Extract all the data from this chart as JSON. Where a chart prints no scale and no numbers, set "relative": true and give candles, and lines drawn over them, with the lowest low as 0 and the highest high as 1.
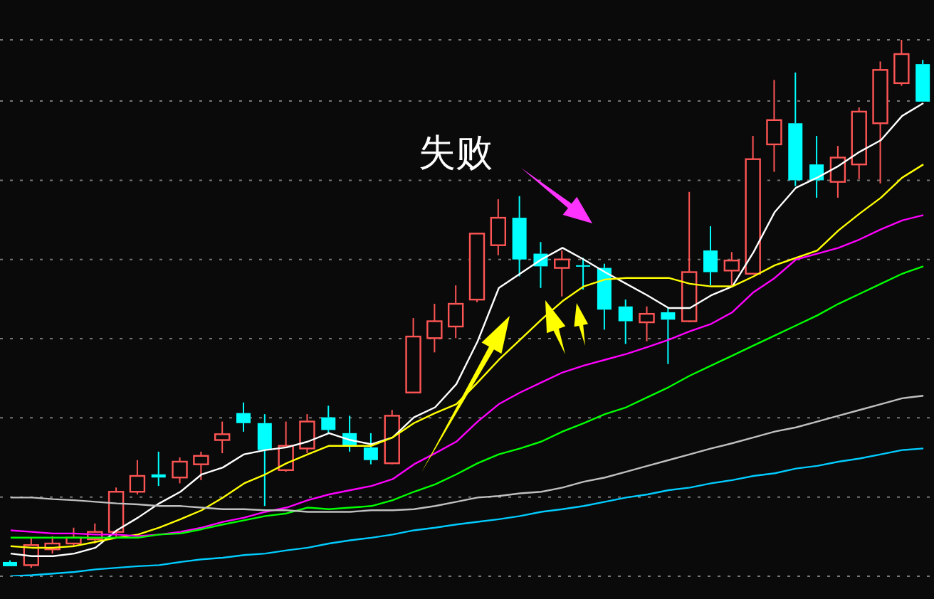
{
  "chart_data": {
    "type": "candlestick",
    "relative": true,
    "grid": true,
    "annotations": [
      "失败"
    ],
    "categories": [
      null,
      null,
      null,
      null,
      null,
      null,
      null,
      null,
      null,
      null,
      null,
      null,
      null,
      null,
      null,
      null,
      null,
      null,
      null,
      null,
      null,
      null,
      null,
      null,
      null,
      null,
      null,
      null,
      null,
      null,
      null,
      null,
      null,
      null,
      null,
      null,
      null,
      null,
      null,
      null,
      null,
      null,
      null,
      null
    ],
    "ohlc": [
      [
        0.011,
        0.014,
        0.003,
        0.003
      ],
      [
        0.005,
        0.057,
        0,
        0.043
      ],
      [
        0.035,
        0.06,
        0.027,
        0.046
      ],
      [
        0.046,
        0.076,
        0.041,
        0.057
      ],
      [
        0.054,
        0.084,
        0.046,
        0.068
      ],
      [
        0.068,
        0.152,
        0.057,
        0.144
      ],
      [
        0.144,
        0.204,
        0.139,
        0.174
      ],
      [
        0.177,
        0.22,
        0.155,
        0.171
      ],
      [
        0.171,
        0.209,
        0.16,
        0.201
      ],
      [
        0.196,
        0.22,
        0.166,
        0.212
      ],
      [
        0.242,
        0.277,
        0.217,
        0.253
      ],
      [
        0.293,
        0.313,
        0.258,
        0.274
      ],
      [
        0.274,
        0.291,
        0.117,
        0.223
      ],
      [
        0.185,
        0.277,
        0.182,
        0.231
      ],
      [
        0.226,
        0.291,
        0.217,
        0.277
      ],
      [
        0.285,
        0.307,
        0.255,
        0.261
      ],
      [
        0.255,
        0.288,
        0.22,
        0.231
      ],
      [
        0.228,
        0.255,
        0.196,
        0.204
      ],
      [
        0.198,
        0.299,
        0.196,
        0.288
      ],
      [
        0.332,
        0.473,
        0.332,
        0.438
      ],
      [
        0.435,
        0.5,
        0.408,
        0.467
      ],
      [
        0.457,
        0.535,
        0.435,
        0.5
      ],
      [
        0.508,
        0.633,
        0.503,
        0.633
      ],
      [
        0.611,
        0.698,
        0.592,
        0.663
      ],
      [
        0.663,
        0.704,
        0.552,
        0.584
      ],
      [
        0.595,
        0.617,
        0.53,
        0.571
      ],
      [
        0.568,
        0.601,
        0.514,
        0.584
      ],
      [
        0.573,
        0.587,
        0.527,
        0.573
      ],
      [
        0.568,
        0.576,
        0.451,
        0.489
      ],
      [
        0.495,
        0.508,
        0.424,
        0.467
      ],
      [
        0.465,
        0.495,
        0.429,
        0.481
      ],
      [
        0.484,
        0.492,
        0.386,
        0.47
      ],
      [
        0.467,
        0.712,
        0.465,
        0.56
      ],
      [
        0.601,
        0.647,
        0.535,
        0.56
      ],
      [
        0.563,
        0.598,
        0.535,
        0.582
      ],
      [
        0.557,
        0.818,
        0.557,
        0.774
      ],
      [
        0.802,
        0.924,
        0.75,
        0.848
      ],
      [
        0.842,
        0.938,
        0.723,
        0.734
      ],
      [
        0.764,
        0.818,
        0.701,
        0.734
      ],
      [
        0.731,
        0.799,
        0.701,
        0.777
      ],
      [
        0.764,
        0.872,
        0.736,
        0.864
      ],
      [
        0.842,
        0.959,
        0.728,
        0.943
      ],
      [
        0.918,
        1,
        0.913,
        0.973
      ],
      [
        0.954,
        0.962,
        0.883,
        0.883
      ]
    ],
    "colors": [
      "#00ffff",
      "#ff5555",
      "#ff5555",
      "#ff5555",
      "#ff5555",
      "#ff5555",
      "#ff5555",
      "#00ffff",
      "#ff5555",
      "#ff5555",
      "#ff5555",
      "#00ffff",
      "#00ffff",
      "#ff5555",
      "#ff5555",
      "#00ffff",
      "#00ffff",
      "#00ffff",
      "#ff5555",
      "#ff5555",
      "#ff5555",
      "#ff5555",
      "#ff5555",
      "#ff5555",
      "#00ffff",
      "#00ffff",
      "#ff5555",
      "#00ffff",
      "#00ffff",
      "#00ffff",
      "#ff5555",
      "#00ffff",
      "#ff5555",
      "#00ffff",
      "#ff5555",
      "#ff5555",
      "#ff5555",
      "#00ffff",
      "#00ffff",
      "#ff5555",
      "#ff5555",
      "#ff5555",
      "#ff5555",
      "#00ffff"
    ],
    "series": [
      {
        "type": "line",
        "color": "#ffffff",
        "values": [
          0.027,
          0.022,
          0.022,
          0.027,
          0.038,
          0.071,
          0.095,
          0.122,
          0.144,
          0.177,
          0.19,
          0.215,
          0.223,
          0.228,
          0.239,
          0.255,
          0.242,
          0.234,
          0.247,
          0.285,
          0.304,
          0.348,
          0.429,
          0.53,
          0.557,
          0.584,
          0.606,
          0.584,
          0.56,
          0.538,
          0.516,
          0.492,
          0.492,
          0.516,
          0.533,
          0.598,
          0.674,
          0.72,
          0.739,
          0.761,
          0.788,
          0.81,
          0.856,
          0.88
        ]
      },
      {
        "type": "line",
        "color": "#ffff00",
        "values": [
          0.041,
          0.038,
          0.038,
          0.041,
          0.049,
          0.057,
          0.063,
          0.076,
          0.092,
          0.109,
          0.133,
          0.16,
          0.177,
          0.198,
          0.215,
          0.231,
          0.231,
          0.231,
          0.247,
          0.274,
          0.293,
          0.31,
          0.351,
          0.394,
          0.432,
          0.47,
          0.505,
          0.533,
          0.546,
          0.549,
          0.549,
          0.549,
          0.538,
          0.533,
          0.533,
          0.552,
          0.573,
          0.587,
          0.601,
          0.639,
          0.671,
          0.701,
          0.739,
          0.764
        ]
      },
      {
        "type": "line",
        "color": "#ff00ff",
        "values": [
          0.071,
          0.068,
          0.065,
          0.065,
          0.063,
          0.063,
          0.06,
          0.063,
          0.068,
          0.076,
          0.087,
          0.095,
          0.106,
          0.114,
          0.128,
          0.139,
          0.147,
          0.155,
          0.168,
          0.196,
          0.217,
          0.239,
          0.277,
          0.31,
          0.332,
          0.351,
          0.37,
          0.383,
          0.394,
          0.405,
          0.418,
          0.432,
          0.448,
          0.462,
          0.484,
          0.522,
          0.549,
          0.584,
          0.595,
          0.606,
          0.622,
          0.641,
          0.658,
          0.668
        ]
      },
      {
        "type": "line",
        "color": "#00ff00",
        "values": [
          0.057,
          0.057,
          0.057,
          0.057,
          0.057,
          0.057,
          0.057,
          0.063,
          0.065,
          0.073,
          0.082,
          0.09,
          0.098,
          0.103,
          0.114,
          0.111,
          0.114,
          0.117,
          0.128,
          0.144,
          0.158,
          0.177,
          0.198,
          0.215,
          0.226,
          0.239,
          0.258,
          0.274,
          0.291,
          0.304,
          0.323,
          0.342,
          0.364,
          0.383,
          0.402,
          0.421,
          0.44,
          0.459,
          0.478,
          0.5,
          0.519,
          0.538,
          0.557,
          0.571
        ]
      },
      {
        "type": "line",
        "color": "#c0c0c0",
        "values": [
          0.133,
          0.133,
          0.13,
          0.128,
          0.125,
          0.122,
          0.12,
          0.117,
          0.117,
          0.114,
          0.111,
          0.111,
          0.109,
          0.109,
          0.106,
          0.106,
          0.106,
          0.109,
          0.109,
          0.111,
          0.117,
          0.125,
          0.133,
          0.136,
          0.141,
          0.144,
          0.152,
          0.163,
          0.171,
          0.182,
          0.193,
          0.204,
          0.215,
          0.226,
          0.236,
          0.247,
          0.258,
          0.266,
          0.277,
          0.288,
          0.299,
          0.31,
          0.321,
          0.326
        ]
      },
      {
        "type": "line",
        "color": "#00ccff",
        "values": [
          -0.016,
          -0.014,
          -0.011,
          -0.008,
          -0.003,
          0,
          0.003,
          0.005,
          0.011,
          0.016,
          0.019,
          0.024,
          0.027,
          0.033,
          0.038,
          0.046,
          0.052,
          0.057,
          0.063,
          0.071,
          0.076,
          0.082,
          0.087,
          0.092,
          0.098,
          0.106,
          0.111,
          0.117,
          0.125,
          0.133,
          0.139,
          0.147,
          0.152,
          0.16,
          0.166,
          0.174,
          0.179,
          0.188,
          0.193,
          0.201,
          0.207,
          0.215,
          0.223,
          0.226
        ]
      }
    ]
  }
}
